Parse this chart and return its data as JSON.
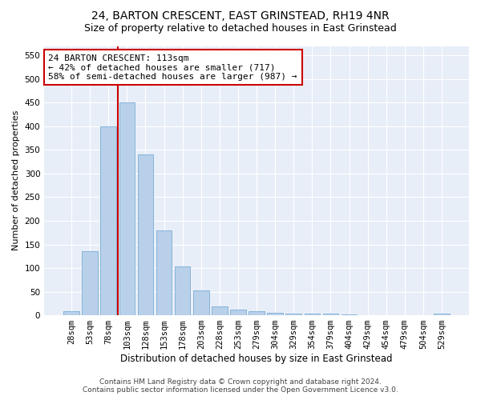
{
  "title": "24, BARTON CRESCENT, EAST GRINSTEAD, RH19 4NR",
  "subtitle": "Size of property relative to detached houses in East Grinstead",
  "xlabel": "Distribution of detached houses by size in East Grinstead",
  "ylabel": "Number of detached properties",
  "categories": [
    "28sqm",
    "53sqm",
    "78sqm",
    "103sqm",
    "128sqm",
    "153sqm",
    "178sqm",
    "203sqm",
    "228sqm",
    "253sqm",
    "279sqm",
    "304sqm",
    "329sqm",
    "354sqm",
    "379sqm",
    "404sqm",
    "429sqm",
    "454sqm",
    "479sqm",
    "504sqm",
    "529sqm"
  ],
  "values": [
    8,
    135,
    400,
    450,
    340,
    180,
    103,
    52,
    18,
    12,
    8,
    6,
    4,
    3,
    3,
    2,
    0,
    0,
    0,
    0,
    3
  ],
  "bar_color": "#b8d0ea",
  "bar_edge_color": "#7aaed4",
  "vline_color": "#cc0000",
  "vline_index": 3,
  "annotation_text": "24 BARTON CRESCENT: 113sqm\n← 42% of detached houses are smaller (717)\n58% of semi-detached houses are larger (987) →",
  "annotation_box_color": "#ffffff",
  "annotation_box_edge": "#cc0000",
  "ylim": [
    0,
    570
  ],
  "yticks": [
    0,
    50,
    100,
    150,
    200,
    250,
    300,
    350,
    400,
    450,
    500,
    550
  ],
  "footer_line1": "Contains HM Land Registry data © Crown copyright and database right 2024.",
  "footer_line2": "Contains public sector information licensed under the Open Government Licence v3.0.",
  "bg_color": "#e8eef8",
  "bar_width": 0.85,
  "title_fontsize": 10,
  "subtitle_fontsize": 9,
  "annotation_fontsize": 8,
  "tick_fontsize": 7.5,
  "ylabel_fontsize": 8,
  "xlabel_fontsize": 8.5
}
